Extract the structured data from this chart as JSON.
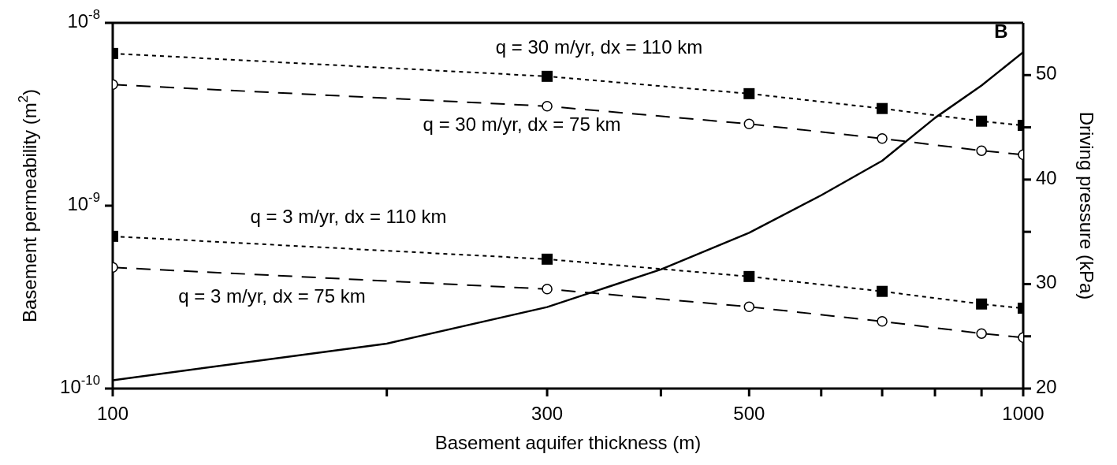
{
  "chart_data": {
    "type": "line",
    "xlabel": "Basement aquifer thickness (m)",
    "ylabel": "Basement permeability (m$^{2}$)",
    "y2label": "Driving pressure (kPa)",
    "log": "xy",
    "xlim": [
      100,
      1000
    ],
    "xticks": [
      100,
      {
        "value": 200,
        "label": null
      },
      300,
      {
        "value": 400,
        "label": null
      },
      500,
      {
        "value": 600,
        "label": null
      },
      {
        "value": 700,
        "label": null
      },
      {
        "value": 800,
        "label": null
      },
      {
        "value": 900,
        "label": null
      },
      1000
    ],
    "ylim": [
      1e-10,
      1e-08
    ],
    "yticks": [
      {
        "value": 1e-10,
        "label": "10$^{-10}$"
      },
      {
        "value": 1e-09,
        "label": "10$^{-9}$"
      },
      {
        "value": 1e-08,
        "label": "10$^{-8}$"
      }
    ],
    "y2lim": [
      20,
      55
    ],
    "y2ticks": [
      20,
      {
        "value": 25,
        "label": null
      },
      30,
      {
        "value": 35,
        "label": null
      },
      40,
      {
        "value": 45,
        "label": null
      },
      50
    ],
    "grid": false,
    "legend": false,
    "series": [
      {
        "color": "#000000",
        "marker": "square",
        "line_style": "dotted",
        "x": [
          100,
          300,
          500,
          700,
          900,
          1000
        ],
        "values": [
          6.8e-09,
          5.1e-09,
          4.1e-09,
          3.4e-09,
          2.9e-09,
          2.75e-09
        ]
      },
      {
        "color": "#000000",
        "marker": "circle",
        "line_style": "dashed",
        "x": [
          100,
          300,
          500,
          700,
          900,
          1000
        ],
        "values": [
          4.6e-09,
          3.5e-09,
          2.8e-09,
          2.33e-09,
          2e-09,
          1.9e-09
        ]
      },
      {
        "color": "#000000",
        "marker": "square",
        "line_style": "dotted",
        "x": [
          100,
          300,
          500,
          700,
          900,
          1000
        ],
        "values": [
          6.8e-10,
          5.1e-10,
          4.1e-10,
          3.4e-10,
          2.9e-10,
          2.75e-10
        ]
      },
      {
        "color": "#000000",
        "marker": "circle",
        "line_style": "dashed",
        "x": [
          100,
          300,
          500,
          700,
          900,
          1000
        ],
        "values": [
          4.6e-10,
          3.5e-10,
          2.8e-10,
          2.33e-10,
          2e-10,
          1.9e-10
        ]
      },
      {
        "color": "#000000",
        "marker": "none",
        "line_style": "solid",
        "axis": "y2",
        "x": [
          100,
          200,
          300,
          400,
          500,
          600,
          700,
          800,
          900,
          1000
        ],
        "values": [
          20.8,
          24.3,
          27.8,
          31.4,
          34.9,
          38.5,
          41.8,
          45.9,
          49.0,
          52.2
        ]
      }
    ],
    "annotations": [
      "q = 30 m/yr, dx = 110 km",
      "q = 30 m/yr, dx = 75 km",
      "q = 3 m/yr, dx = 110 km",
      "q = 3 m/yr, dx = 75 km",
      "B"
    ]
  }
}
